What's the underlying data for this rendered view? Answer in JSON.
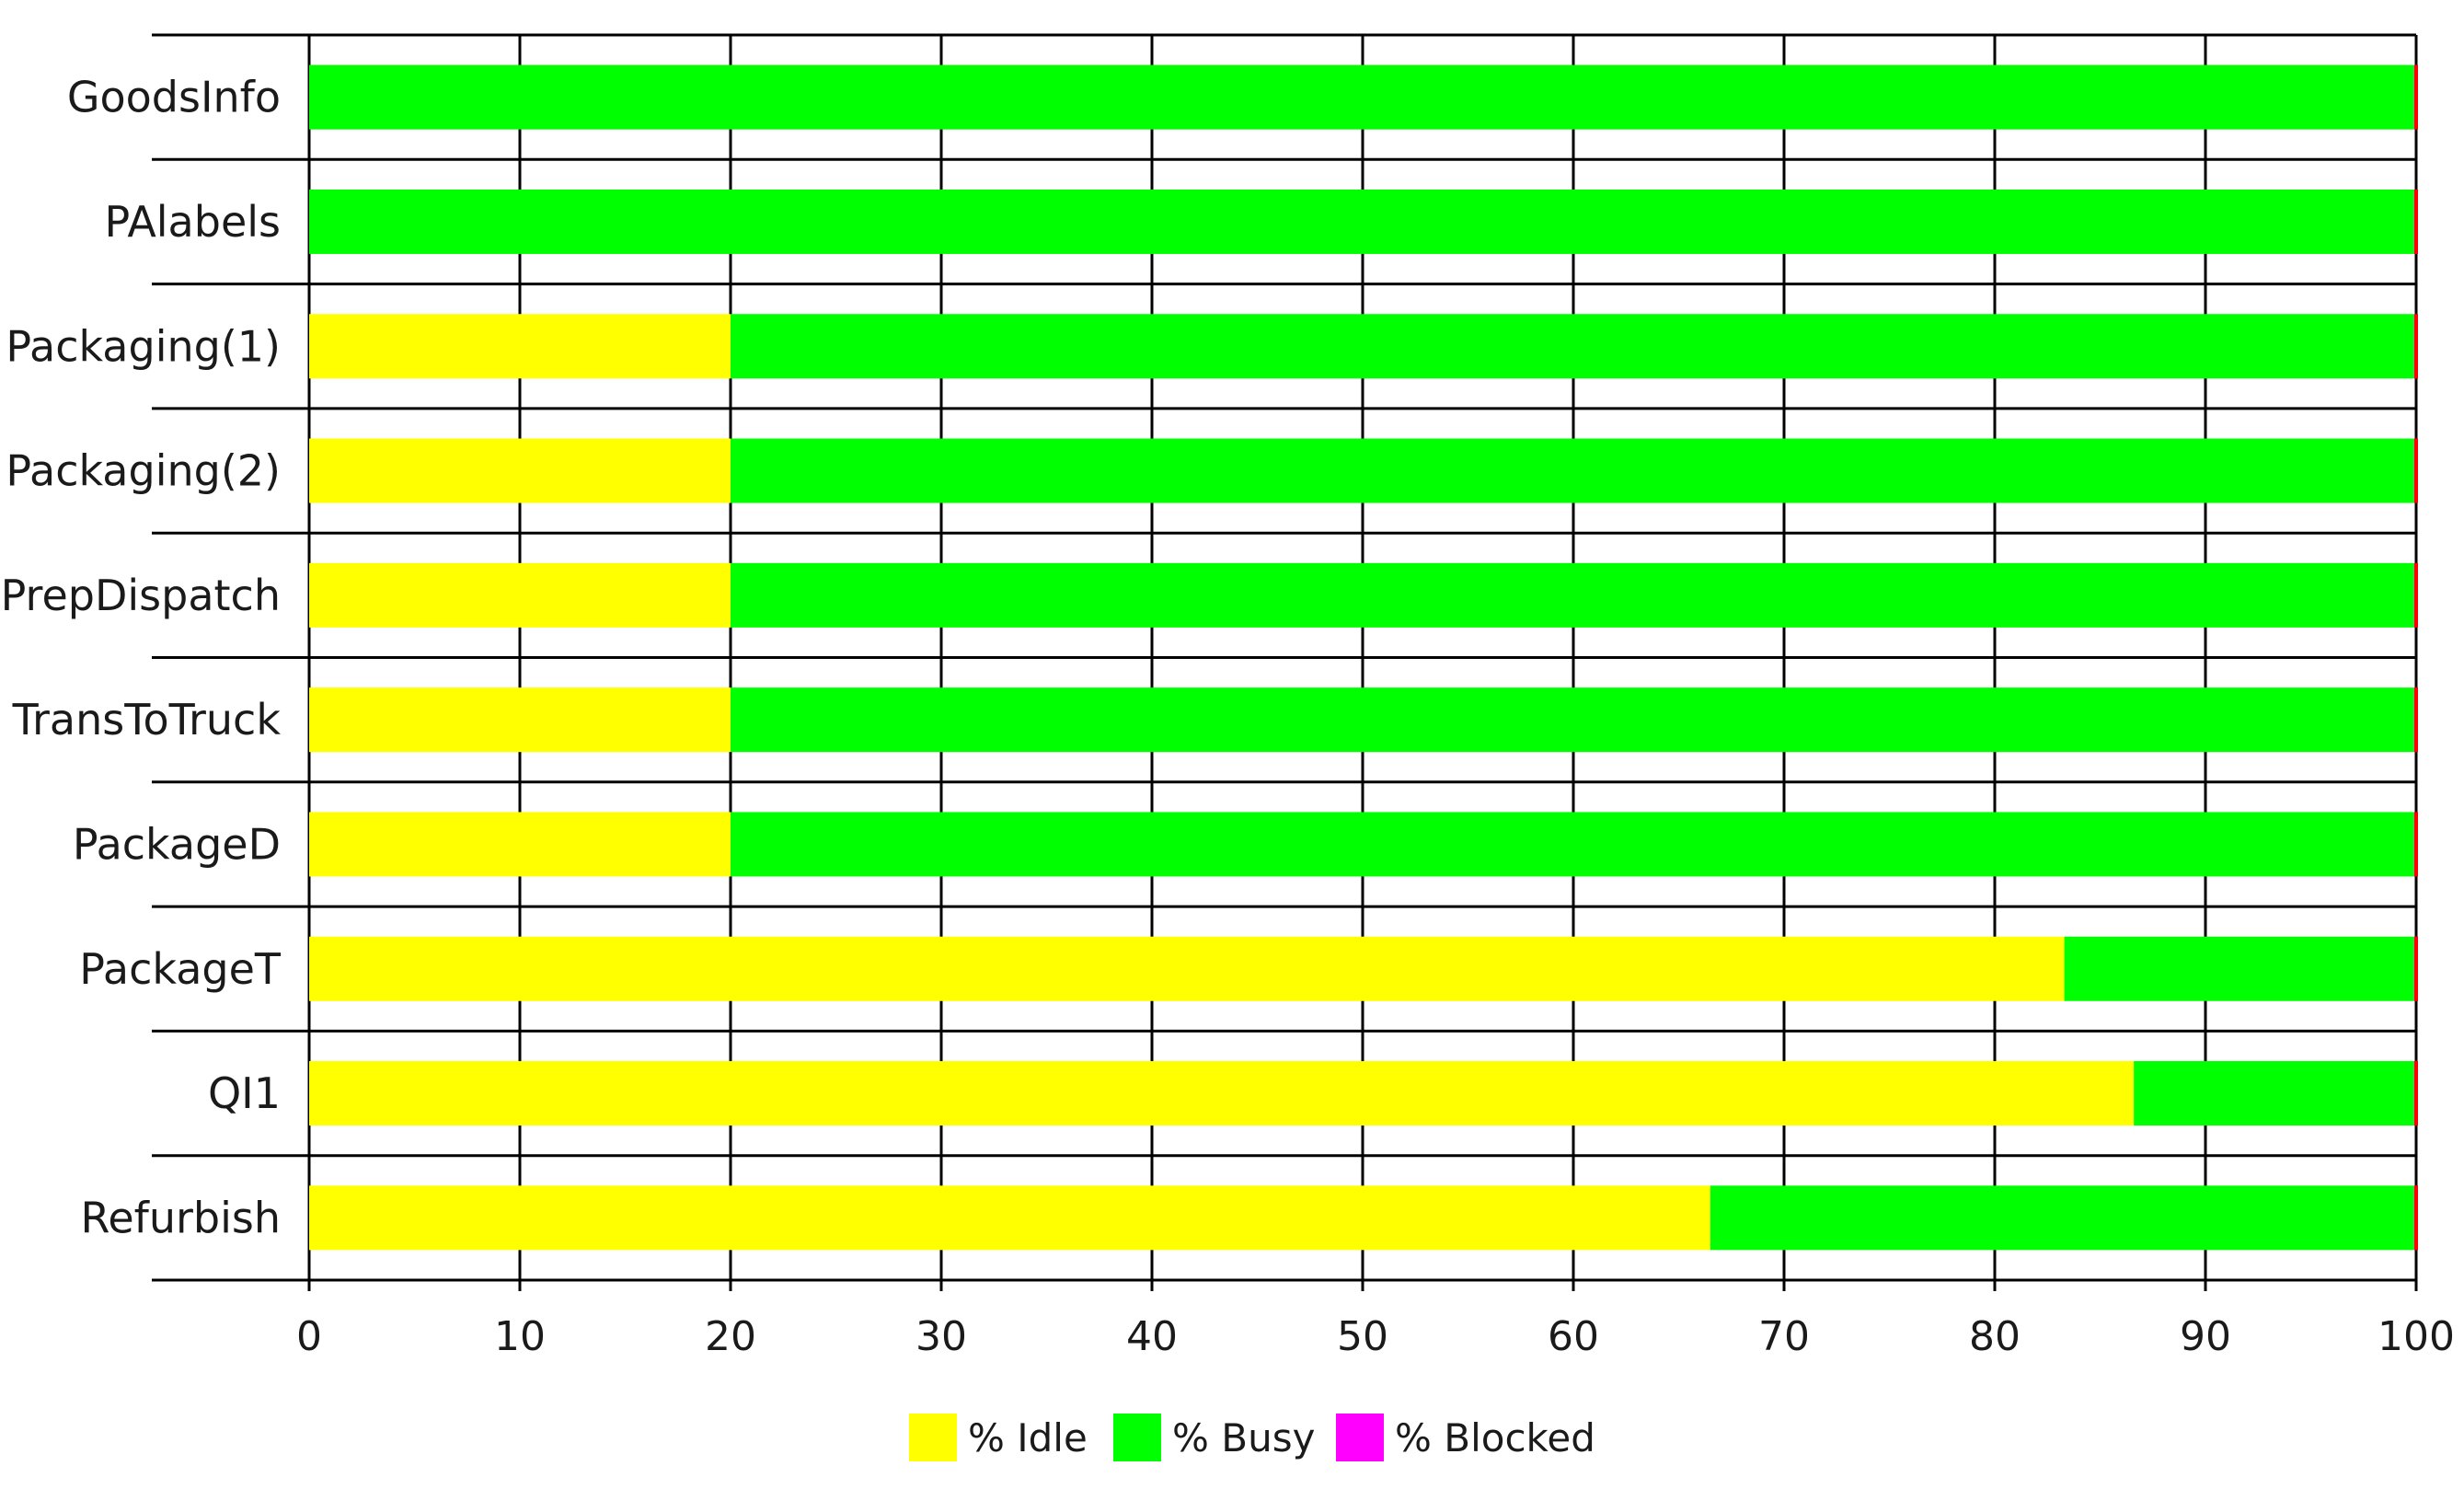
{
  "chart_data": {
    "type": "bar",
    "orientation": "horizontal",
    "stacked": true,
    "title": "",
    "xlabel": "",
    "ylabel": "",
    "xlim": [
      0,
      100
    ],
    "x_ticks": [
      "0",
      "10",
      "20",
      "30",
      "40",
      "50",
      "60",
      "70",
      "80",
      "90",
      "100"
    ],
    "grid": true,
    "legend_position": "bottom",
    "categories": [
      "GoodsInfo",
      "PAlabels",
      "Packaging(1)",
      "Packaging(2)",
      "PrepDispatch",
      "TransToTruck",
      "PackageD",
      "PackageT",
      "QI1",
      "Refurbish"
    ],
    "series": [
      {
        "name": "% Idle",
        "color": "#ffff00",
        "values": [
          0,
          0,
          20,
          20,
          20,
          20,
          20,
          83.3,
          86.6,
          66.5
        ]
      },
      {
        "name": "% Busy",
        "color": "#00ff00",
        "values": [
          99.9,
          99.9,
          79.9,
          79.9,
          79.9,
          79.9,
          79.9,
          16.6,
          13.3,
          33.4
        ]
      },
      {
        "name": "% Blocked",
        "color": "#ff00ff",
        "values": [
          0.1,
          0.1,
          0.1,
          0.1,
          0.1,
          0.1,
          0.1,
          0.1,
          0.1,
          0.1
        ]
      }
    ],
    "edge_marker_color": "#ff0000"
  }
}
